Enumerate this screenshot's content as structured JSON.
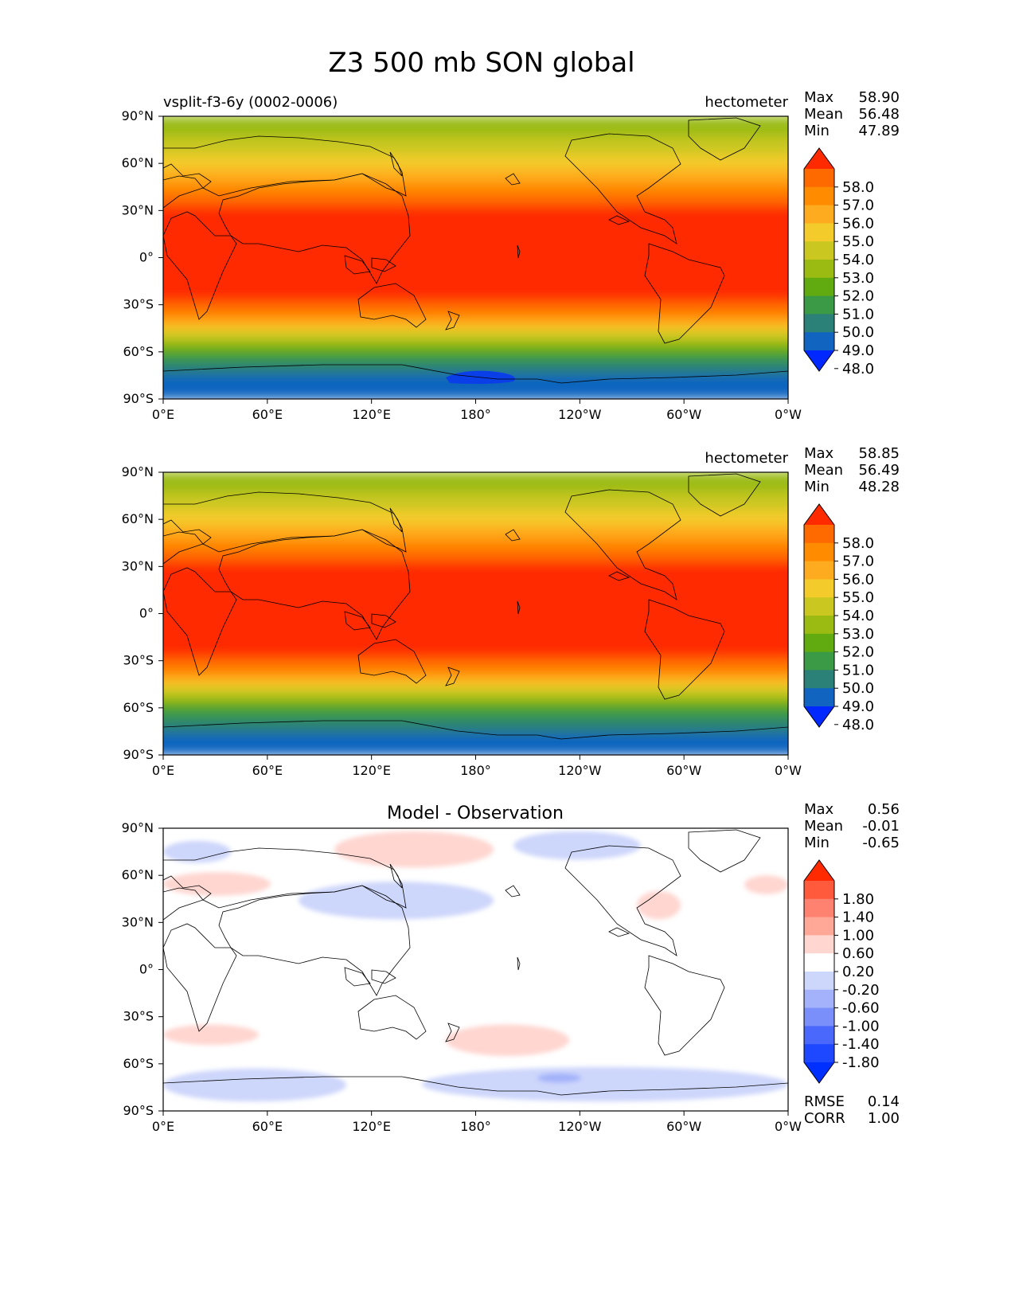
{
  "title": "Z3 500 mb SON global",
  "x_ticks": [
    "0°E",
    "60°E",
    "120°E",
    "180°",
    "120°W",
    "60°W",
    "0°W"
  ],
  "y_ticks": [
    "90°N",
    "60°N",
    "30°N",
    "0°",
    "30°S",
    "60°S",
    "90°S"
  ],
  "stat_labels": {
    "max": "Max",
    "mean": "Mean",
    "min": "Min",
    "rmse": "RMSE",
    "corr": "CORR"
  },
  "panels": [
    {
      "id": "test",
      "left_title": "vsplit-f3-6y (0002-0006)",
      "center_title": "",
      "units": "hectometer",
      "stats": {
        "max": "58.90",
        "mean": "56.48",
        "min": "47.89"
      }
    },
    {
      "id": "ref",
      "left_title": "",
      "center_title": "",
      "units": "hectometer",
      "stats": {
        "max": "58.85",
        "mean": "56.49",
        "min": "48.28"
      }
    },
    {
      "id": "diff",
      "left_title": "",
      "center_title": "Model - Observation",
      "units": "",
      "stats": {
        "max": "0.56",
        "mean": "-0.01",
        "min": "-0.65"
      },
      "metrics": {
        "rmse": "0.14",
        "corr": "1.00"
      }
    }
  ],
  "colorbar_main": {
    "labels": [
      "58.0",
      "57.0",
      "56.0",
      "55.0",
      "54.0",
      "53.0",
      "52.0",
      "51.0",
      "50.0",
      "49.0",
      "48.0"
    ],
    "colors": [
      "#ff2a00",
      "#ff6a00",
      "#ff8c00",
      "#ffab1f",
      "#f3cb2b",
      "#c9c720",
      "#9bbb13",
      "#61ab10",
      "#3b9a45",
      "#2b8078",
      "#1165c0",
      "#0028ff"
    ]
  },
  "colorbar_diff": {
    "labels": [
      "1.80",
      "1.40",
      "1.00",
      "0.60",
      "0.20",
      "-0.20",
      "-0.60",
      "-1.00",
      "-1.40",
      "-1.80"
    ],
    "colors": [
      "#ff2a00",
      "#ff5a3c",
      "#ff8270",
      "#ffa898",
      "#ffd6d0",
      "#ffffff",
      "#cdd6fb",
      "#a3b2fa",
      "#7a8ffa",
      "#4a68fb",
      "#1e48ff",
      "#0030ff"
    ]
  },
  "chart_data": [
    {
      "type": "heatmap",
      "title": "vsplit-f3-6y (0002-0006)",
      "units": "hectometer",
      "x_range": [
        0,
        360
      ],
      "y_range": [
        -90,
        90
      ],
      "zonal_mean_profile": {
        "lat": [
          90,
          80,
          70,
          60,
          50,
          40,
          30,
          20,
          10,
          0,
          -10,
          -20,
          -30,
          -40,
          -50,
          -60,
          -70,
          -80,
          -90
        ],
        "value": [
          52.2,
          52.8,
          53.6,
          54.6,
          55.8,
          57.2,
          58.4,
          58.6,
          58.7,
          58.7,
          58.7,
          58.5,
          57.8,
          55.8,
          53.5,
          51.2,
          49.3,
          48.6,
          48.6
        ]
      },
      "stats": {
        "max": 58.9,
        "mean": 56.48,
        "min": 47.89
      }
    },
    {
      "type": "heatmap",
      "units": "hectometer",
      "x_range": [
        0,
        360
      ],
      "y_range": [
        -90,
        90
      ],
      "zonal_mean_profile": {
        "lat": [
          90,
          80,
          70,
          60,
          50,
          40,
          30,
          20,
          10,
          0,
          -10,
          -20,
          -30,
          -40,
          -50,
          -60,
          -70,
          -80,
          -90
        ],
        "value": [
          52.2,
          52.8,
          53.6,
          54.6,
          55.8,
          57.2,
          58.4,
          58.6,
          58.7,
          58.7,
          58.7,
          58.5,
          57.8,
          55.8,
          53.5,
          51.1,
          49.6,
          48.7,
          48.7
        ]
      },
      "stats": {
        "max": 58.85,
        "mean": 56.49,
        "min": 48.28
      }
    },
    {
      "type": "heatmap",
      "title": "Model - Observation",
      "x_range": [
        0,
        360
      ],
      "y_range": [
        -90,
        90
      ],
      "anomalies": [
        {
          "lon": [
            0,
            85
          ],
          "lat": [
            68,
            82
          ],
          "value": -0.4
        },
        {
          "lon": [
            0,
            135
          ],
          "lat": [
            47,
            62
          ],
          "value": 0.4
        },
        {
          "lon": [
            215,
            415
          ],
          "lat": [
            65,
            88
          ],
          "value": 0.4
        },
        {
          "lon": [
            440,
            600
          ],
          "lat": [
            70,
            88
          ],
          "value": -0.4
        },
        {
          "lon": [
            170,
            415
          ],
          "lat": [
            32,
            56
          ],
          "value": -0.4
        },
        {
          "lon": [
            595,
            650
          ],
          "lat": [
            32,
            50
          ],
          "value": 0.4
        },
        {
          "lon": [
            730,
            785
          ],
          "lat": [
            48,
            60
          ],
          "value": 0.4
        },
        {
          "lon": [
            0,
            120
          ],
          "lat": [
            -48,
            -35
          ],
          "value": 0.4
        },
        {
          "lon": [
            355,
            510
          ],
          "lat": [
            -55,
            -35
          ],
          "value": 0.4
        },
        {
          "lon": [
            0,
            230
          ],
          "lat": [
            -84,
            -63
          ],
          "value": -0.4
        },
        {
          "lon": [
            325,
            785
          ],
          "lat": [
            -84,
            -62
          ],
          "value": -0.4
        },
        {
          "lon": [
            470,
            525
          ],
          "lat": [
            -72,
            -66
          ],
          "value": -0.8
        }
      ],
      "stats": {
        "max": 0.56,
        "mean": -0.01,
        "min": -0.65
      },
      "rmse": 0.14,
      "corr": 1.0
    }
  ]
}
